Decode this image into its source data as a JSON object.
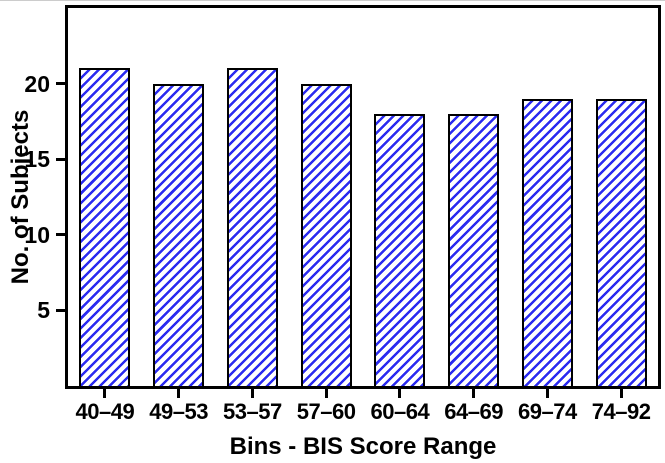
{
  "chart_data": {
    "type": "bar",
    "categories": [
      "40–49",
      "49–53",
      "53–57",
      "57–60",
      "60–64",
      "64–69",
      "69–74",
      "74–92"
    ],
    "values": [
      21,
      20,
      21,
      20,
      18,
      18,
      19,
      19
    ],
    "xlabel": "Bins - BIS Score Range",
    "ylabel": "No. of Subjects",
    "ylim": [
      0,
      25
    ],
    "yticks": [
      5,
      10,
      15,
      20
    ],
    "grid": false,
    "legend": "none",
    "bar_style": {
      "fill": "#ffffff",
      "hatch": "diagonal-forward",
      "hatch_color": "#2b2bf0",
      "edge_color": "#000000"
    },
    "axis_color": "#000000"
  }
}
